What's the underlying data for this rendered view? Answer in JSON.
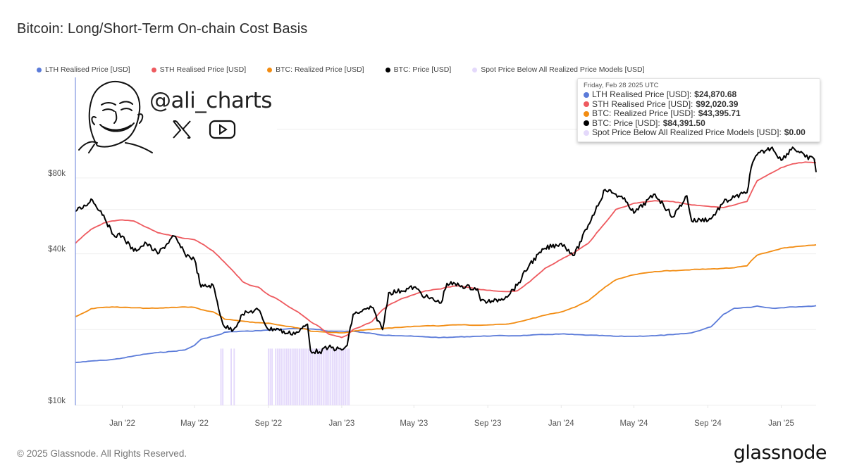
{
  "title": "Bitcoin: Long/Short-Term On-chain Cost Basis",
  "legend": [
    {
      "label": "LTH Realised Price [USD]",
      "color": "#5b7bd9"
    },
    {
      "label": "STH Realised Price [USD]",
      "color": "#ee5a5f"
    },
    {
      "label": "BTC: Realized Price [USD]",
      "color": "#f28c12"
    },
    {
      "label": "BTC: Price [USD]",
      "color": "#000000"
    },
    {
      "label": "Spot Price Below All Realized Price Models [USD]",
      "color": "#e4d9fb"
    }
  ],
  "tooltip": {
    "date": "Friday, Feb 28 2025 UTC",
    "rows": [
      {
        "label": "LTH Realised Price [USD]:",
        "value": "$24,870.68",
        "color": "#5b7bd9"
      },
      {
        "label": "STH Realised Price [USD]:",
        "value": "$92,020.39",
        "color": "#ee5a5f"
      },
      {
        "label": "BTC: Realized Price [USD]:",
        "value": "$43,395.71",
        "color": "#f28c12"
      },
      {
        "label": "BTC: Price [USD]:",
        "value": "$84,391.50",
        "color": "#000000"
      },
      {
        "label": "Spot Price Below All Realized Price Models [USD]:",
        "value": "$0.00",
        "color": "#e4d9fb"
      }
    ]
  },
  "watermark": {
    "handle": "@ali_charts",
    "icons": [
      "x-logo-icon",
      "youtube-icon",
      "meme-face-illustration"
    ]
  },
  "footer": {
    "copyright": "© 2025 Glassnode. All Rights Reserved.",
    "brand": "glassnode"
  },
  "chart_data": {
    "type": "line",
    "title": "Bitcoin: Long/Short-Term On-chain Cost Basis",
    "xlabel": "",
    "ylabel": "",
    "yscale": "log",
    "ylim": [
      10000,
      130000
    ],
    "xlim": [
      "2021-10-15",
      "2025-02-28"
    ],
    "grid": true,
    "legend_position": "top",
    "y_ticks": [
      {
        "value": 80000,
        "label": "$80k"
      },
      {
        "value": 40000,
        "label": "$40k"
      },
      {
        "value": 10000,
        "label": "$10k"
      }
    ],
    "y_gridlines": [
      125000,
      80000,
      60000,
      40000,
      20000
    ],
    "x_ticks": [
      {
        "date": "2022-01-01",
        "label": "Jan '22"
      },
      {
        "date": "2022-05-01",
        "label": "May '22"
      },
      {
        "date": "2022-09-01",
        "label": "Sep '22"
      },
      {
        "date": "2023-01-01",
        "label": "Jan '23"
      },
      {
        "date": "2023-05-01",
        "label": "May '23"
      },
      {
        "date": "2023-09-01",
        "label": "Sep '23"
      },
      {
        "date": "2024-01-01",
        "label": "Jan '24"
      },
      {
        "date": "2024-05-01",
        "label": "May '24"
      },
      {
        "date": "2024-09-01",
        "label": "Sep '24"
      },
      {
        "date": "2025-01-01",
        "label": "Jan '25"
      }
    ],
    "x": [
      "2021-10-15",
      "2021-11-01",
      "2021-11-10",
      "2021-12-01",
      "2021-12-15",
      "2022-01-01",
      "2022-01-20",
      "2022-02-10",
      "2022-03-01",
      "2022-03-28",
      "2022-04-15",
      "2022-05-01",
      "2022-05-12",
      "2022-06-01",
      "2022-06-15",
      "2022-06-20",
      "2022-07-05",
      "2022-07-20",
      "2022-08-01",
      "2022-08-15",
      "2022-09-01",
      "2022-09-15",
      "2022-10-01",
      "2022-10-20",
      "2022-11-05",
      "2022-11-10",
      "2022-11-25",
      "2022-12-10",
      "2023-01-01",
      "2023-01-10",
      "2023-01-20",
      "2023-02-01",
      "2023-02-20",
      "2023-03-10",
      "2023-03-20",
      "2023-04-10",
      "2023-05-01",
      "2023-05-20",
      "2023-06-15",
      "2023-06-25",
      "2023-07-15",
      "2023-08-15",
      "2023-08-20",
      "2023-09-10",
      "2023-10-01",
      "2023-10-20",
      "2023-11-10",
      "2023-12-05",
      "2024-01-01",
      "2024-01-23",
      "2024-02-15",
      "2024-03-14",
      "2024-04-01",
      "2024-04-20",
      "2024-05-01",
      "2024-06-05",
      "2024-07-05",
      "2024-07-28",
      "2024-08-05",
      "2024-09-06",
      "2024-09-27",
      "2024-10-15",
      "2024-11-05",
      "2024-11-12",
      "2024-11-22",
      "2024-12-17",
      "2025-01-01",
      "2025-01-20",
      "2025-02-10",
      "2025-02-25",
      "2025-02-28"
    ],
    "series": [
      {
        "name": "BTC: Price [USD]",
        "color": "#000000",
        "values": [
          59000,
          62000,
          66000,
          57000,
          48000,
          47000,
          41000,
          44000,
          40000,
          47000,
          40000,
          38000,
          29500,
          30000,
          22000,
          20500,
          20000,
          23000,
          23500,
          24000,
          20000,
          20200,
          19300,
          19500,
          21000,
          16500,
          16300,
          17000,
          16600,
          17300,
          23000,
          23500,
          24500,
          20000,
          28000,
          28500,
          29500,
          27000,
          25500,
          30500,
          30000,
          29000,
          26000,
          25800,
          27000,
          30000,
          36500,
          42000,
          44000,
          39500,
          52000,
          72000,
          69000,
          64000,
          58000,
          69000,
          56000,
          68000,
          54000,
          55000,
          64000,
          67000,
          70000,
          88000,
          99000,
          106000,
          94000,
          106000,
          97000,
          95000,
          84391
        ]
      },
      {
        "name": "STH Realised Price [USD]",
        "color": "#ee5a5f",
        "values": [
          44000,
          48000,
          50000,
          53000,
          54000,
          54500,
          54000,
          51000,
          48500,
          47000,
          46000,
          45500,
          44000,
          41000,
          38000,
          37000,
          34000,
          31000,
          30000,
          29500,
          27500,
          26500,
          25000,
          23500,
          22000,
          21500,
          20500,
          19200,
          18600,
          19000,
          20000,
          20500,
          21500,
          24000,
          25000,
          26500,
          27500,
          28500,
          29000,
          29500,
          29800,
          29000,
          28800,
          28500,
          28300,
          28500,
          31000,
          35000,
          38000,
          40500,
          44000,
          53000,
          60000,
          62000,
          63500,
          65000,
          64500,
          63000,
          62500,
          61500,
          61000,
          62500,
          64500,
          70000,
          78000,
          84000,
          88000,
          91000,
          92500,
          92000,
          92020
        ]
      },
      {
        "name": "BTC: Realized Price [USD]",
        "color": "#f28c12",
        "values": [
          22500,
          23500,
          24200,
          24500,
          24600,
          24500,
          24400,
          24300,
          24300,
          24500,
          24600,
          24500,
          24000,
          23500,
          22500,
          22000,
          21800,
          21600,
          21400,
          21300,
          21200,
          20900,
          20600,
          20300,
          20000,
          19700,
          19600,
          19500,
          19400,
          19500,
          19700,
          19900,
          20000,
          20200,
          20300,
          20400,
          20600,
          20700,
          20700,
          20800,
          20900,
          20800,
          20800,
          20900,
          21000,
          21400,
          22000,
          22800,
          23500,
          24500,
          26000,
          29500,
          31500,
          32500,
          33000,
          34000,
          34300,
          34500,
          34600,
          34800,
          35000,
          35200,
          35800,
          37500,
          39500,
          41000,
          42000,
          42500,
          43000,
          43300,
          43396
        ]
      },
      {
        "name": "LTH Realised Price [USD]",
        "color": "#5b7bd9",
        "values": [
          14800,
          14900,
          15000,
          15100,
          15200,
          15400,
          15700,
          16000,
          16200,
          16400,
          16600,
          17300,
          18300,
          18800,
          19200,
          19500,
          19600,
          19700,
          19700,
          19800,
          19900,
          20000,
          20100,
          20200,
          20100,
          20100,
          20000,
          19700,
          19700,
          19700,
          19700,
          19500,
          19300,
          19000,
          19000,
          18900,
          18800,
          18700,
          18600,
          18600,
          18700,
          18800,
          18800,
          18900,
          18900,
          18900,
          19000,
          19100,
          19200,
          19100,
          19000,
          18900,
          18800,
          18800,
          18800,
          18900,
          19100,
          19300,
          19400,
          20500,
          23000,
          24300,
          24500,
          24500,
          24800,
          24300,
          24400,
          24600,
          24700,
          24800,
          24870
        ]
      },
      {
        "name": "Spot Price Below All Realized Price Models [USD]",
        "color": "#e4d9fb",
        "type": "bands",
        "ranges": [
          [
            "2022-06-13",
            "2022-06-19"
          ],
          [
            "2022-06-30",
            "2022-07-02"
          ],
          [
            "2022-07-05",
            "2022-07-06"
          ],
          [
            "2022-08-31",
            "2022-09-08"
          ],
          [
            "2022-09-12",
            "2023-01-12"
          ]
        ]
      }
    ],
    "tooltip_snapshot_date": "2025-02-28"
  }
}
